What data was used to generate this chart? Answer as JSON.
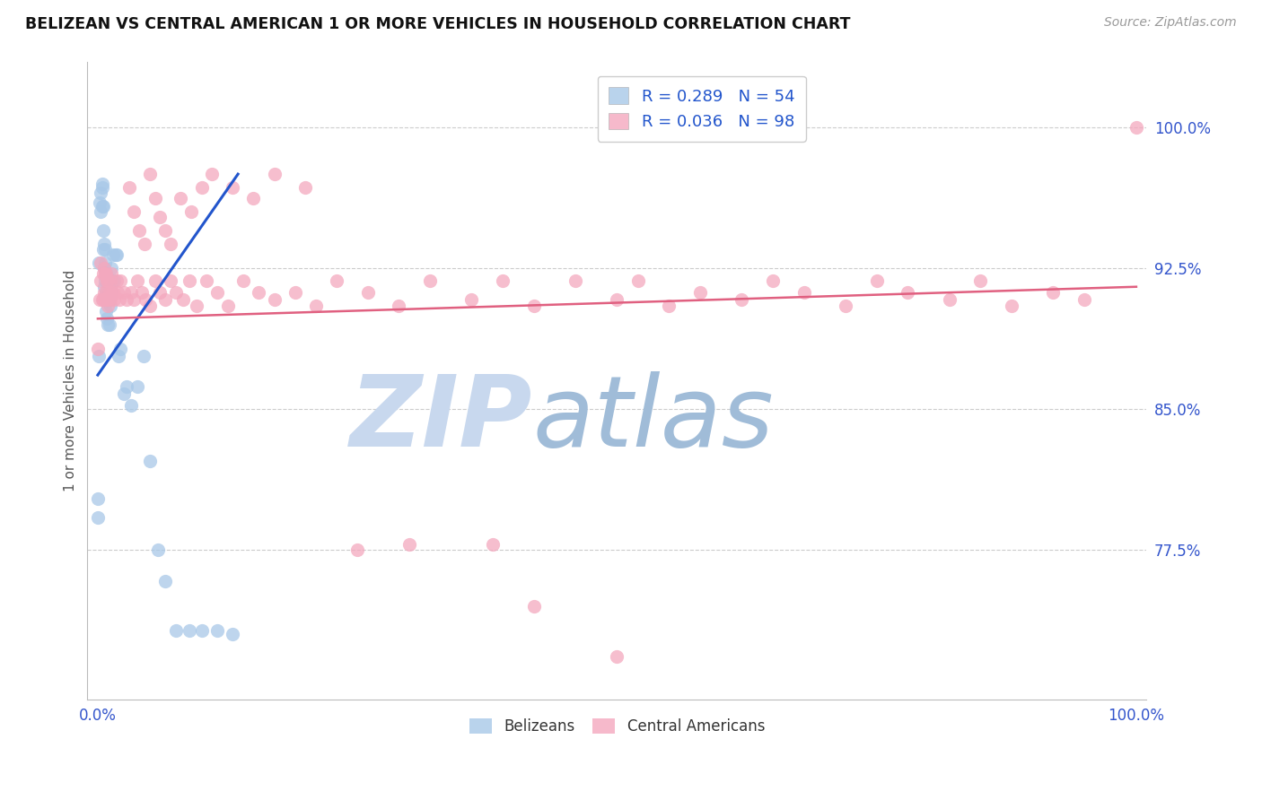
{
  "title": "BELIZEAN VS CENTRAL AMERICAN 1 OR MORE VEHICLES IN HOUSEHOLD CORRELATION CHART",
  "source": "Source: ZipAtlas.com",
  "ylabel": "1 or more Vehicles in Household",
  "xlabel": "",
  "xlim": [
    -0.01,
    1.01
  ],
  "ylim": [
    0.695,
    1.035
  ],
  "yticks": [
    0.775,
    0.85,
    0.925,
    1.0
  ],
  "ytick_labels": [
    "77.5%",
    "85.0%",
    "92.5%",
    "100.0%"
  ],
  "xtick_labels": [
    "0.0%",
    "",
    "",
    "",
    "",
    "",
    "",
    "",
    "",
    "",
    "100.0%"
  ],
  "blue_R": 0.289,
  "blue_N": 54,
  "pink_R": 0.036,
  "pink_N": 98,
  "blue_color": "#a8c8e8",
  "pink_color": "#f4a8be",
  "blue_line_color": "#2255cc",
  "pink_line_color": "#e06080",
  "background_color": "#ffffff",
  "grid_color": "#cccccc",
  "watermark_zip": "ZIP",
  "watermark_atlas": "atlas",
  "watermark_color_zip": "#c8d8ee",
  "watermark_color_atlas": "#a0bcd8",
  "title_color": "#111111",
  "source_color": "#999999",
  "tick_color": "#3355cc",
  "ylabel_color": "#555555",
  "blue_x": [
    0.002,
    0.003,
    0.003,
    0.004,
    0.004,
    0.004,
    0.005,
    0.005,
    0.005,
    0.006,
    0.006,
    0.006,
    0.007,
    0.007,
    0.007,
    0.007,
    0.008,
    0.008,
    0.008,
    0.009,
    0.009,
    0.009,
    0.01,
    0.01,
    0.011,
    0.011,
    0.012,
    0.012,
    0.013,
    0.013,
    0.014,
    0.015,
    0.016,
    0.017,
    0.018,
    0.02,
    0.022,
    0.025,
    0.028,
    0.032,
    0.038,
    0.044,
    0.05,
    0.058,
    0.065,
    0.075,
    0.088,
    0.1,
    0.115,
    0.13,
    0.0,
    0.0,
    0.001,
    0.001
  ],
  "blue_y": [
    0.96,
    0.955,
    0.965,
    0.958,
    0.968,
    0.97,
    0.935,
    0.945,
    0.958,
    0.915,
    0.925,
    0.938,
    0.91,
    0.918,
    0.928,
    0.935,
    0.902,
    0.912,
    0.922,
    0.898,
    0.908,
    0.918,
    0.895,
    0.908,
    0.895,
    0.908,
    0.905,
    0.918,
    0.912,
    0.925,
    0.918,
    0.932,
    0.918,
    0.932,
    0.932,
    0.878,
    0.882,
    0.858,
    0.862,
    0.852,
    0.862,
    0.878,
    0.822,
    0.775,
    0.758,
    0.732,
    0.732,
    0.732,
    0.732,
    0.73,
    0.792,
    0.802,
    0.878,
    0.928
  ],
  "pink_x": [
    0.0,
    0.002,
    0.003,
    0.003,
    0.004,
    0.005,
    0.005,
    0.006,
    0.006,
    0.007,
    0.007,
    0.008,
    0.008,
    0.009,
    0.009,
    0.01,
    0.01,
    0.011,
    0.012,
    0.012,
    0.013,
    0.014,
    0.015,
    0.016,
    0.018,
    0.019,
    0.021,
    0.022,
    0.025,
    0.028,
    0.032,
    0.035,
    0.038,
    0.042,
    0.046,
    0.05,
    0.055,
    0.06,
    0.065,
    0.07,
    0.075,
    0.082,
    0.088,
    0.095,
    0.105,
    0.115,
    0.125,
    0.14,
    0.155,
    0.17,
    0.19,
    0.21,
    0.23,
    0.26,
    0.29,
    0.32,
    0.36,
    0.39,
    0.42,
    0.46,
    0.5,
    0.52,
    0.55,
    0.58,
    0.62,
    0.65,
    0.68,
    0.72,
    0.75,
    0.78,
    0.82,
    0.85,
    0.88,
    0.92,
    0.95,
    0.03,
    0.035,
    0.04,
    0.045,
    0.05,
    0.055,
    0.06,
    0.065,
    0.07,
    0.08,
    0.09,
    0.1,
    0.11,
    0.13,
    0.15,
    0.17,
    0.2,
    0.25,
    0.3,
    0.38,
    0.42,
    0.5,
    1.0
  ],
  "pink_y": [
    0.882,
    0.908,
    0.918,
    0.928,
    0.908,
    0.908,
    0.922,
    0.912,
    0.925,
    0.908,
    0.922,
    0.912,
    0.922,
    0.908,
    0.918,
    0.905,
    0.918,
    0.912,
    0.908,
    0.918,
    0.922,
    0.912,
    0.912,
    0.908,
    0.918,
    0.912,
    0.908,
    0.918,
    0.912,
    0.908,
    0.912,
    0.908,
    0.918,
    0.912,
    0.908,
    0.905,
    0.918,
    0.912,
    0.908,
    0.918,
    0.912,
    0.908,
    0.918,
    0.905,
    0.918,
    0.912,
    0.905,
    0.918,
    0.912,
    0.908,
    0.912,
    0.905,
    0.918,
    0.912,
    0.905,
    0.918,
    0.908,
    0.918,
    0.905,
    0.918,
    0.908,
    0.918,
    0.905,
    0.912,
    0.908,
    0.918,
    0.912,
    0.905,
    0.918,
    0.912,
    0.908,
    0.918,
    0.905,
    0.912,
    0.908,
    0.968,
    0.955,
    0.945,
    0.938,
    0.975,
    0.962,
    0.952,
    0.945,
    0.938,
    0.962,
    0.955,
    0.968,
    0.975,
    0.968,
    0.962,
    0.975,
    0.968,
    0.775,
    0.778,
    0.778,
    0.745,
    0.718,
    1.0
  ],
  "blue_trend_x": [
    0.0,
    0.135
  ],
  "blue_trend_y": [
    0.868,
    0.975
  ],
  "pink_trend_x": [
    0.0,
    1.0
  ],
  "pink_trend_y": [
    0.898,
    0.915
  ]
}
